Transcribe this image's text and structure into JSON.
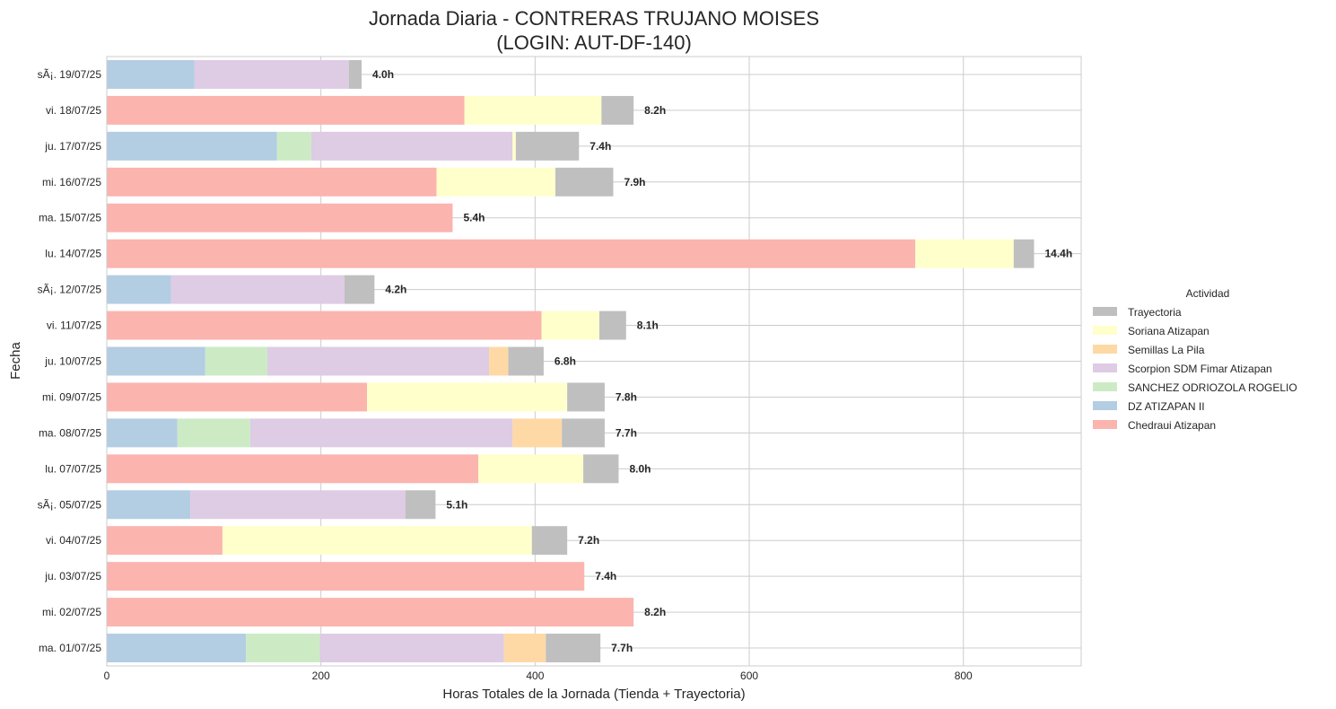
{
  "chart_data": {
    "type": "bar",
    "orientation": "horizontal",
    "stacked": true,
    "title_line1": "Jornada Diaria - CONTRERAS TRUJANO MOISES",
    "title_line2": "(LOGIN: AUT-DF-140)",
    "xlabel": "Horas Totales de la Jornada (Tienda + Trayectoria)",
    "ylabel": "Fecha",
    "xlim": [
      0,
      910
    ],
    "xticks": [
      0,
      200,
      400,
      600,
      800
    ],
    "grid": true,
    "legend_title": "Actividad",
    "legend_position": "right",
    "legend_order": [
      "Trayectoria",
      "Soriana Atizapan",
      "Semillas La Pila",
      "Scorpion SDM Fimar Atizapan",
      "SANCHEZ ODRIOZOLA ROGELIO",
      "DZ ATIZAPAN II",
      "Chedraui Atizapan"
    ],
    "colors": {
      "Chedraui Atizapan": "#fbb4ae",
      "DZ ATIZAPAN II": "#b3cde3",
      "SANCHEZ ODRIOZOLA ROGELIO": "#ccebc5",
      "Scorpion SDM Fimar Atizapan": "#decbe4",
      "Semillas La Pila": "#fed9a6",
      "Soriana Atizapan": "#ffffcc",
      "Trayectoria": "#bfbfbf"
    },
    "stack_order": [
      "Chedraui Atizapan",
      "DZ ATIZAPAN II",
      "SANCHEZ ODRIOZOLA ROGELIO",
      "Scorpion SDM Fimar Atizapan",
      "Semillas La Pila",
      "Soriana Atizapan",
      "Trayectoria"
    ],
    "categories": [
      "sÃ¡. 19/07/25",
      "vi. 18/07/25",
      "ju. 17/07/25",
      "mi. 16/07/25",
      "ma. 15/07/25",
      "lu. 14/07/25",
      "sÃ¡. 12/07/25",
      "vi. 11/07/25",
      "ju. 10/07/25",
      "mi. 09/07/25",
      "ma. 08/07/25",
      "lu. 07/07/25",
      "sÃ¡. 05/07/25",
      "vi. 04/07/25",
      "ju. 03/07/25",
      "mi. 02/07/25",
      "ma. 01/07/25"
    ],
    "series": [
      {
        "name": "Chedraui Atizapan",
        "values": [
          0,
          334,
          0,
          308,
          323,
          755,
          0,
          406,
          0,
          243,
          0,
          347,
          0,
          108,
          446,
          492,
          0
        ]
      },
      {
        "name": "DZ ATIZAPAN II",
        "values": [
          82,
          0,
          159,
          0,
          0,
          0,
          60,
          0,
          92,
          0,
          66,
          0,
          78,
          0,
          0,
          0,
          130
        ]
      },
      {
        "name": "SANCHEZ ODRIOZOLA ROGELIO",
        "values": [
          0,
          0,
          32,
          0,
          0,
          0,
          0,
          0,
          58,
          0,
          68,
          0,
          0,
          0,
          0,
          0,
          69
        ]
      },
      {
        "name": "Scorpion SDM Fimar Atizapan",
        "values": [
          144,
          0,
          188,
          0,
          0,
          0,
          162,
          0,
          207,
          0,
          245,
          0,
          201,
          0,
          0,
          0,
          172
        ]
      },
      {
        "name": "Semillas La Pila",
        "values": [
          0,
          0,
          0,
          0,
          0,
          0,
          0,
          0,
          18,
          0,
          46,
          0,
          0,
          0,
          0,
          0,
          39
        ]
      },
      {
        "name": "Soriana Atizapan",
        "values": [
          0,
          128,
          3,
          111,
          0,
          92,
          0,
          54,
          0,
          187,
          0,
          98,
          0,
          289,
          0,
          0,
          0
        ]
      },
      {
        "name": "Trayectoria",
        "values": [
          12,
          30,
          59,
          54,
          0,
          19,
          28,
          25,
          33,
          35,
          40,
          33,
          28,
          33,
          0,
          0,
          51
        ]
      }
    ],
    "total_labels": [
      "4.0h",
      "8.2h",
      "7.4h",
      "7.9h",
      "5.4h",
      "14.4h",
      "4.2h",
      "8.1h",
      "6.8h",
      "7.8h",
      "7.7h",
      "8.0h",
      "5.1h",
      "7.2h",
      "7.4h",
      "8.2h",
      "7.7h"
    ]
  }
}
